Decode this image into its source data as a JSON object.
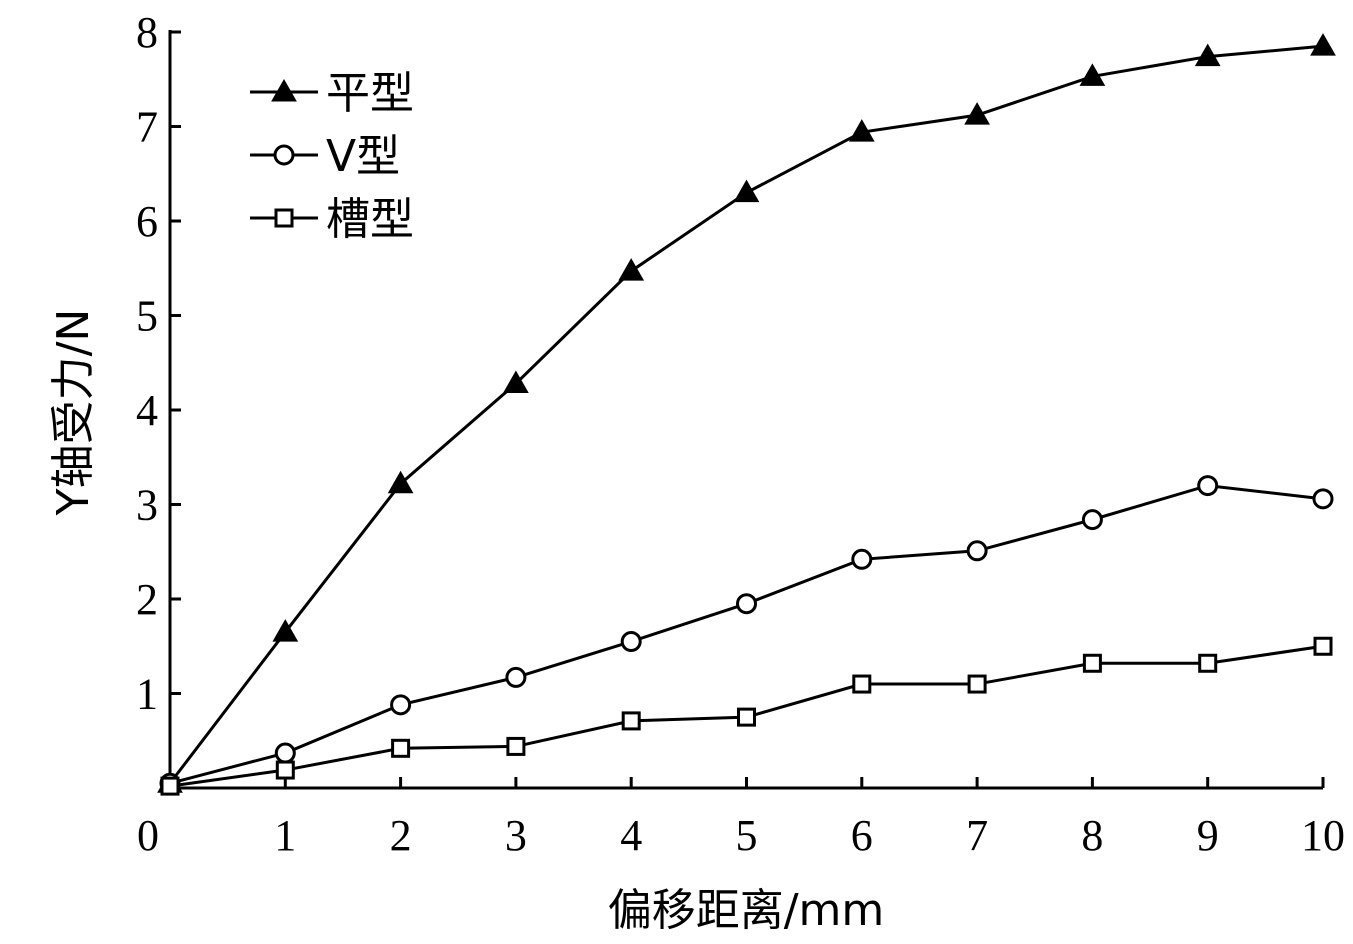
{
  "chart_data": {
    "type": "line",
    "xlabel": "偏移距离/mm",
    "ylabel": "Y轴受力/N",
    "xlim": [
      0,
      10
    ],
    "ylim": [
      0,
      8
    ],
    "x_ticks": [
      "0",
      "1",
      "2",
      "3",
      "4",
      "5",
      "6",
      "7",
      "8",
      "9",
      "10"
    ],
    "y_ticks": [
      "1",
      "2",
      "3",
      "4",
      "5",
      "6",
      "7",
      "8"
    ],
    "grid": false,
    "legend_position": "top-left",
    "x": [
      0,
      1,
      2,
      3,
      4,
      5,
      6,
      7,
      8,
      9,
      10
    ],
    "series": [
      {
        "name": "平型",
        "marker": "filled-triangle",
        "values": [
          0.05,
          1.65,
          3.22,
          4.28,
          5.47,
          6.3,
          6.94,
          7.12,
          7.53,
          7.74,
          7.85
        ]
      },
      {
        "name": "V型",
        "marker": "open-circle",
        "values": [
          0.05,
          0.37,
          0.88,
          1.17,
          1.55,
          1.95,
          2.42,
          2.51,
          2.84,
          3.2,
          3.06
        ]
      },
      {
        "name": "槽型",
        "marker": "open-square",
        "values": [
          0.02,
          0.19,
          0.42,
          0.44,
          0.71,
          0.75,
          1.1,
          1.1,
          1.32,
          1.32,
          1.5
        ]
      }
    ]
  }
}
